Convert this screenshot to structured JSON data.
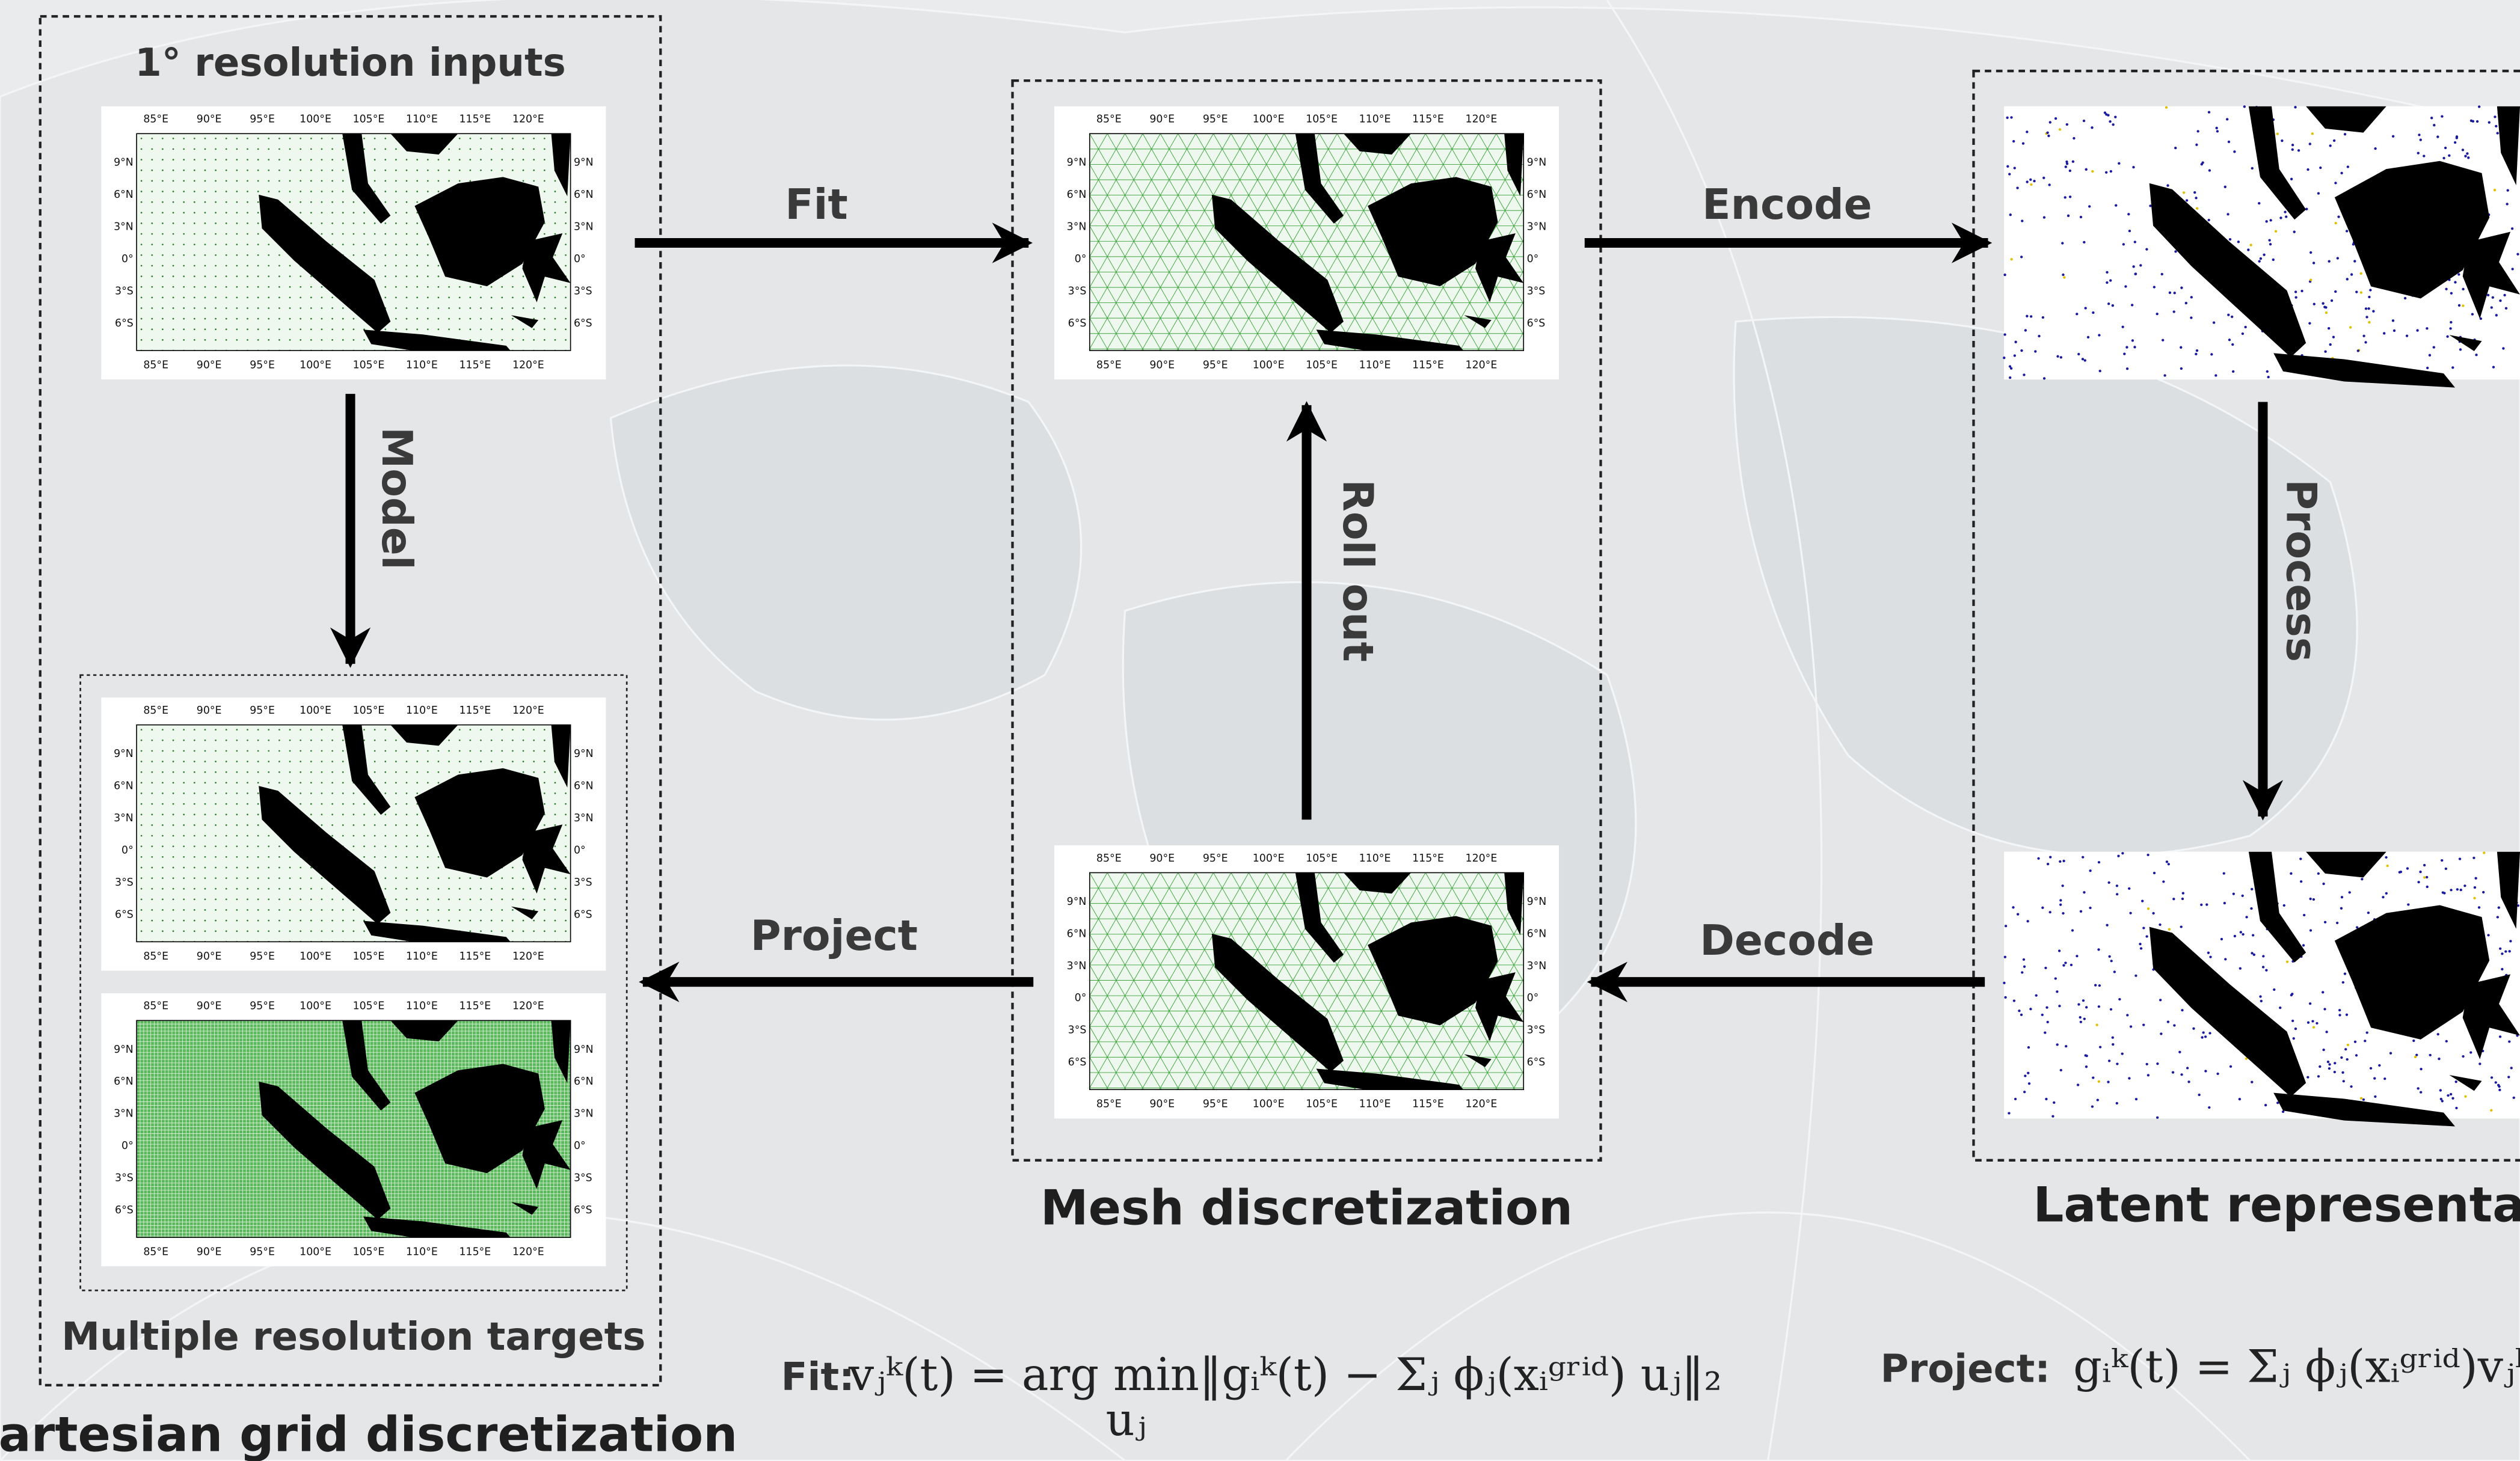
{
  "panels": {
    "cartesian": {
      "input_title": "1° resolution inputs",
      "targets_title": "Multiple resolution targets",
      "title": "Cartesian grid discretization"
    },
    "mesh": {
      "title": "Mesh discretization"
    },
    "latent": {
      "title": "Latent representation"
    }
  },
  "arrows": {
    "fit": "Fit",
    "encode": "Encode",
    "process": "Process",
    "decode": "Decode",
    "roll_out": "Roll out",
    "project": "Project",
    "model": "Model"
  },
  "map_axes": {
    "lon_labels": [
      "85°E",
      "90°E",
      "95°E",
      "100°E",
      "105°E",
      "110°E",
      "115°E",
      "120°E"
    ],
    "lat_labels": [
      "9°N",
      "6°N",
      "3°N",
      "0°",
      "3°S",
      "6°S"
    ]
  },
  "equations": {
    "fit": {
      "label": "Fit:",
      "formula": "vⱼᵏ(t) = arg min‖gᵢᵏ(t) − Σⱼ ϕⱼ(xᵢᵍʳⁱᵈ) uⱼ‖₂",
      "under": "uⱼ"
    },
    "project": {
      "label": "Project:",
      "formula": "gᵢᵏ(t) = Σⱼ ϕⱼ(xᵢᵍʳⁱᵈ)vⱼᵏ(t)"
    }
  }
}
